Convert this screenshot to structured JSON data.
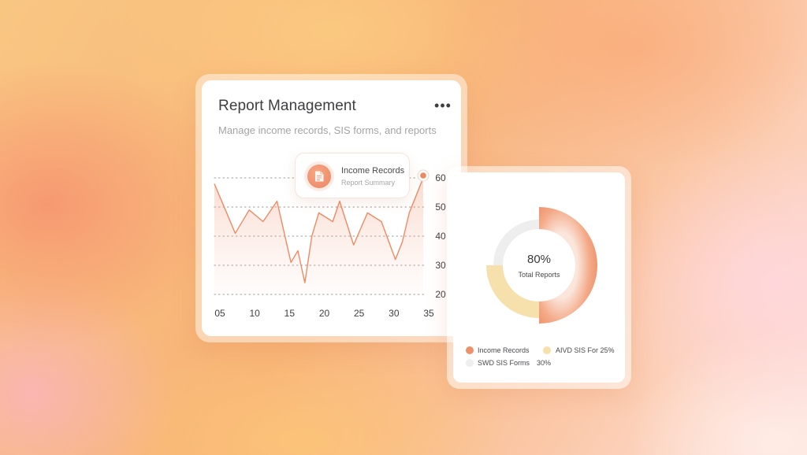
{
  "report_card": {
    "title": "Report Management",
    "subtitle": "Manage income records, SIS forms, and reports",
    "menu_icon": "more-horizontal-icon",
    "tooltip": {
      "icon": "document-icon",
      "title": "Income Records",
      "subtitle": "Report Summary"
    }
  },
  "chart_data": {
    "type": "area",
    "x_ticks": [
      "05",
      "10",
      "15",
      "20",
      "25",
      "30",
      "35"
    ],
    "y_ticks": [
      "60",
      "50",
      "40",
      "30",
      "20"
    ],
    "xlim": [
      5,
      35
    ],
    "ylim": [
      20,
      60
    ],
    "grid": "horizontal-dotted",
    "series": [
      {
        "color": "#ec8b62",
        "x": [
          5,
          8,
          10,
          12,
          14,
          16,
          17,
          18,
          19,
          20,
          22,
          23,
          25,
          27,
          29,
          31,
          32,
          33,
          35
        ],
        "y": [
          58,
          41,
          49,
          45,
          52,
          31,
          35,
          24,
          40,
          48,
          45,
          52,
          37,
          48,
          45,
          32,
          38,
          48,
          60
        ]
      }
    ]
  },
  "donut_card": {
    "center_value": "80%",
    "center_label": "Total Reports",
    "chart_data": {
      "type": "pie",
      "variant": "donut",
      "slices": [
        {
          "value": 50,
          "color": "#ee9168"
        },
        {
          "value": 25,
          "color": "#f6e1ac"
        },
        {
          "value": 25,
          "color": "#eeeeee"
        }
      ]
    },
    "legend": [
      {
        "label": "Income Records",
        "color": "#ee9168"
      },
      {
        "label": "AIVD SIS For 25%",
        "color": "#f6e1ac"
      },
      {
        "label": "SWD SIS Forms",
        "color": "#eeeeee"
      },
      {
        "label": "30%",
        "color": ""
      }
    ]
  }
}
